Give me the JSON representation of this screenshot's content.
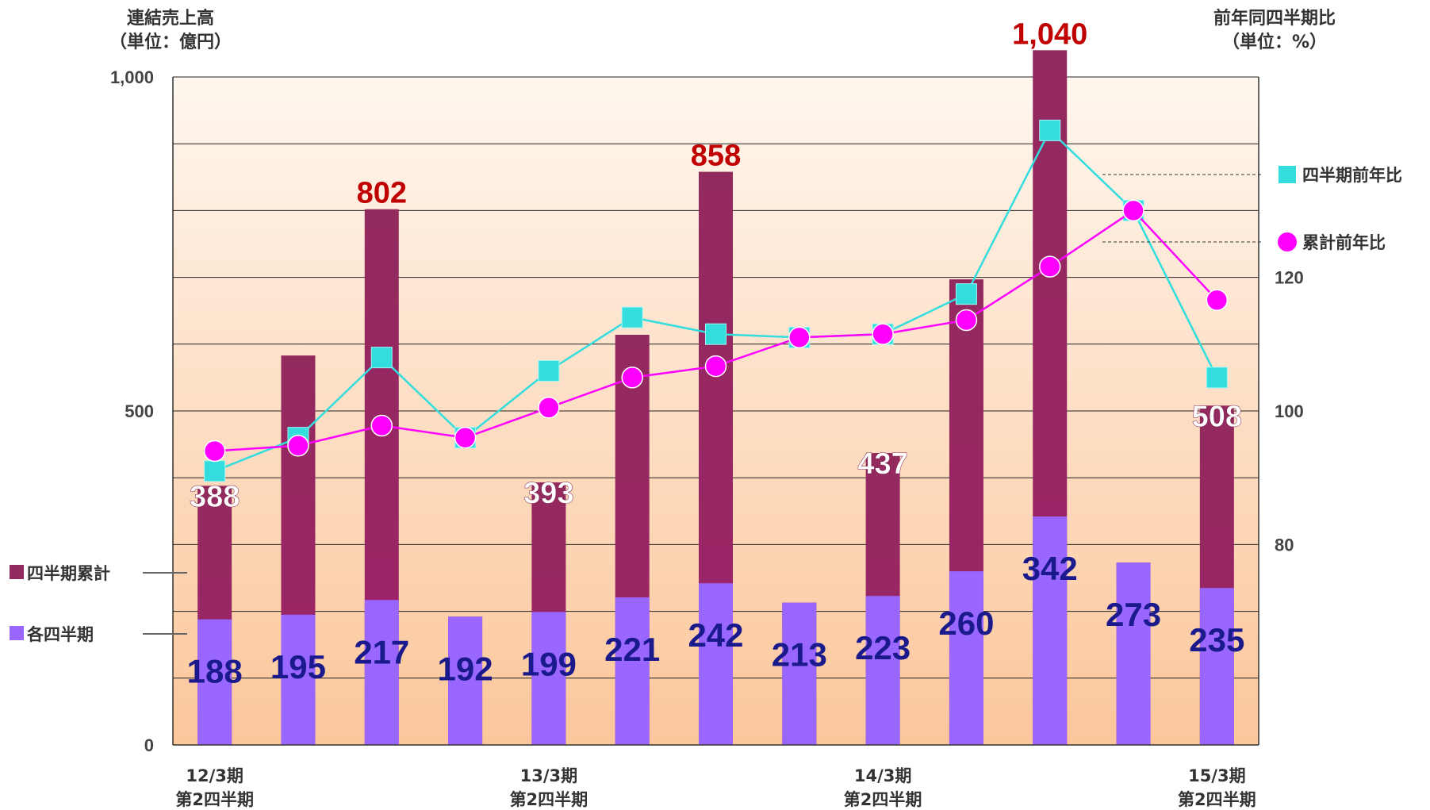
{
  "chart_data": {
    "type": "bar",
    "left_axis_title": [
      "連結売上高",
      "（単位：億円）"
    ],
    "right_axis_title": [
      "前年同四半期比",
      "（単位：%）"
    ],
    "left_ylim": [
      0,
      1000
    ],
    "left_ticks": [
      "0",
      "500",
      "1,000"
    ],
    "right_ylim": [
      50,
      150
    ],
    "right_ticks": [
      "80",
      "100",
      "120"
    ],
    "category_labels": [
      {
        "index": 0,
        "lines": [
          "12/3期",
          "第2四半期"
        ]
      },
      {
        "index": 4,
        "lines": [
          "13/3期",
          "第2四半期"
        ]
      },
      {
        "index": 8,
        "lines": [
          "14/3期",
          "第2四半期"
        ]
      },
      {
        "index": 12,
        "lines": [
          "15/3期",
          "第2四半期"
        ]
      }
    ],
    "series": [
      {
        "name": "四半期累計",
        "kind": "bar-cumulative",
        "color": "#932a5e",
        "values": [
          388,
          583,
          802,
          192,
          393,
          614,
          858,
          213,
          437,
          697,
          1040,
          273,
          508
        ],
        "labels": [
          "388",
          "",
          "802",
          "",
          "393",
          "",
          "858",
          "",
          "437",
          "",
          "1,040",
          "",
          "508"
        ],
        "label_colors": [
          "#ffffff",
          "",
          "#c00000",
          "",
          "#ffffff",
          "",
          "#c00000",
          "",
          "#ffffff",
          "",
          "#c00000",
          "",
          "#ffffff"
        ]
      },
      {
        "name": "各四半期",
        "kind": "bar-quarter",
        "color": "#9966ff",
        "values": [
          188,
          195,
          217,
          192,
          199,
          221,
          242,
          213,
          223,
          260,
          342,
          273,
          235
        ],
        "labels": [
          "188",
          "195",
          "217",
          "192",
          "199",
          "221",
          "242",
          "213",
          "223",
          "260",
          "342",
          "273",
          "235"
        ]
      },
      {
        "name": "四半期前年比",
        "kind": "line-square",
        "color": "#33dddd",
        "values": [
          91,
          96,
          108,
          96,
          106,
          114,
          111.5,
          111,
          111.5,
          117.5,
          142,
          130,
          105
        ]
      },
      {
        "name": "累計前年比",
        "kind": "line-circle",
        "color": "#ff00ff",
        "values": [
          94,
          94.8,
          97.8,
          96,
          100.5,
          105,
          106.7,
          111,
          111.5,
          113.6,
          121.6,
          130,
          116.6
        ]
      }
    ],
    "legend": [
      {
        "name": "四半期累計",
        "color": "#932a5e",
        "placement": "left"
      },
      {
        "name": "各四半期",
        "color": "#9966ff",
        "placement": "left"
      },
      {
        "name": "四半期前年比",
        "color": "#33dddd",
        "placement": "right"
      },
      {
        "name": "累計前年比",
        "color": "#ff00ff",
        "placement": "right"
      }
    ],
    "grid": true
  }
}
